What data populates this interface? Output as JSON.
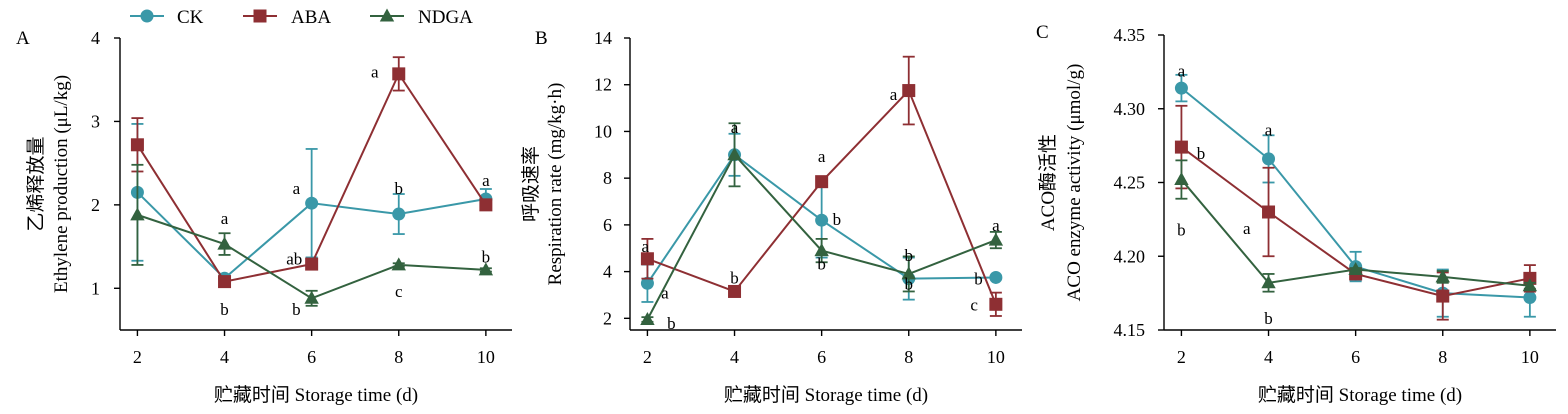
{
  "legend": [
    {
      "name": "CK",
      "color": "#3a98a8",
      "marker": "circle"
    },
    {
      "name": "ABA",
      "color": "#8e2f33",
      "marker": "square"
    },
    {
      "name": "NDGA",
      "color": "#33623f",
      "marker": "triangle"
    }
  ],
  "chart_data": [
    {
      "type": "line",
      "panel_label": "A",
      "xlabel": "贮藏时间 Storage time (d)",
      "ylabel_cn": "乙烯释放量",
      "ylabel_en": "Ethylene production (μL/kg)",
      "x": [
        2,
        4,
        6,
        8,
        10
      ],
      "xticks": [
        "2",
        "4",
        "6",
        "8",
        "10"
      ],
      "xlim": [
        1.6,
        10.6
      ],
      "ylim": [
        0.5,
        4
      ],
      "yticks": [
        1,
        2,
        3,
        4
      ],
      "ytick_labels": [
        "1",
        "2",
        "3",
        "4"
      ],
      "series": [
        {
          "name": "CK",
          "values": [
            2.15,
            1.12,
            2.02,
            1.89,
            2.07
          ],
          "errors": [
            0.82,
            0.04,
            0.65,
            0.24,
            0.12
          ]
        },
        {
          "name": "ABA",
          "values": [
            2.72,
            1.08,
            1.29,
            3.57,
            2.0
          ],
          "errors": [
            0.32,
            0.04,
            0.06,
            0.2,
            0.06
          ]
        },
        {
          "name": "NDGA",
          "values": [
            1.88,
            1.53,
            0.88,
            1.28,
            1.22
          ],
          "errors": [
            0.6,
            0.13,
            0.09,
            0.02,
            0.02
          ]
        }
      ],
      "annotations": [
        {
          "text": "a",
          "x": 4,
          "y": 1.84
        },
        {
          "text": "b",
          "x": 4,
          "y": 0.75
        },
        {
          "text": "a",
          "x": 5.65,
          "y": 2.2
        },
        {
          "text": "ab",
          "x": 5.6,
          "y": 1.36
        },
        {
          "text": "b",
          "x": 5.65,
          "y": 0.75
        },
        {
          "text": "a",
          "x": 7.45,
          "y": 3.6
        },
        {
          "text": "b",
          "x": 8,
          "y": 2.2
        },
        {
          "text": "c",
          "x": 8,
          "y": 0.97
        },
        {
          "text": "a",
          "x": 10,
          "y": 2.3
        },
        {
          "text": "b",
          "x": 10,
          "y": 1.38
        }
      ]
    },
    {
      "type": "line",
      "panel_label": "B",
      "xlabel": "贮藏时间 Storage time (d)",
      "ylabel_cn": "呼吸速率",
      "ylabel_en": "Respiration rate (mg/kg·h)",
      "x": [
        2,
        4,
        6,
        8,
        10
      ],
      "xticks": [
        "2",
        "4",
        "6",
        "8",
        "10"
      ],
      "xlim": [
        1.6,
        10.6
      ],
      "ylim": [
        1.5,
        14
      ],
      "yticks": [
        2,
        4,
        6,
        8,
        10,
        12,
        14
      ],
      "ytick_labels": [
        "2",
        "4",
        "6",
        "8",
        "10",
        "12",
        "14"
      ],
      "series": [
        {
          "name": "CK",
          "values": [
            3.5,
            9.0,
            6.2,
            3.7,
            3.75
          ],
          "errors": [
            0.8,
            0.9,
            1.6,
            0.9,
            0.05
          ]
        },
        {
          "name": "ABA",
          "values": [
            4.55,
            3.15,
            7.85,
            11.75,
            2.6
          ],
          "errors": [
            0.85,
            0.05,
            0.1,
            1.45,
            0.5
          ]
        },
        {
          "name": "NDGA",
          "values": [
            1.95,
            9.0,
            4.9,
            3.9,
            5.35
          ],
          "errors": [
            0.1,
            1.35,
            0.5,
            0.75,
            0.35
          ]
        }
      ],
      "annotations": [
        {
          "text": "a",
          "x": 1.95,
          "y": 5.1
        },
        {
          "text": "a",
          "x": 2.4,
          "y": 3.1
        },
        {
          "text": "b",
          "x": 2.55,
          "y": 1.8
        },
        {
          "text": "a",
          "x": 4,
          "y": 10.2
        },
        {
          "text": "b",
          "x": 4,
          "y": 3.75
        },
        {
          "text": "a",
          "x": 6,
          "y": 8.95
        },
        {
          "text": "b",
          "x": 6.35,
          "y": 6.25
        },
        {
          "text": "b",
          "x": 6,
          "y": 4.35
        },
        {
          "text": "a",
          "x": 7.65,
          "y": 11.6
        },
        {
          "text": "b",
          "x": 8,
          "y": 4.7
        },
        {
          "text": "b",
          "x": 8,
          "y": 3.5
        },
        {
          "text": "a",
          "x": 10,
          "y": 6.0
        },
        {
          "text": "b",
          "x": 9.6,
          "y": 3.7
        },
        {
          "text": "c",
          "x": 9.5,
          "y": 2.6
        }
      ]
    },
    {
      "type": "line",
      "panel_label": "C",
      "xlabel": "贮藏时间 Storage time (d)",
      "ylabel_cn": "ACO酶活性",
      "ylabel_en": "ACO enzyme activity (μmol/g)",
      "x": [
        2,
        4,
        6,
        8,
        10
      ],
      "xticks": [
        "2",
        "4",
        "6",
        "8",
        "10"
      ],
      "xlim": [
        1.6,
        10.6
      ],
      "ylim": [
        4.15,
        4.35
      ],
      "yticks": [
        4.15,
        4.2,
        4.25,
        4.3,
        4.35
      ],
      "ytick_labels": [
        "4.15",
        "4.20",
        "4.25",
        "4.30",
        "4.35"
      ],
      "series": [
        {
          "name": "CK",
          "values": [
            4.314,
            4.266,
            4.193,
            4.175,
            4.172
          ],
          "errors": [
            0.009,
            0.016,
            0.01,
            0.016,
            0.013
          ]
        },
        {
          "name": "ABA",
          "values": [
            4.274,
            4.23,
            4.188,
            4.173,
            4.185
          ],
          "errors": [
            0.028,
            0.03,
            0.003,
            0.016,
            0.009
          ]
        },
        {
          "name": "NDGA",
          "values": [
            4.252,
            4.182,
            4.191,
            4.186,
            4.18
          ],
          "errors": [
            0.013,
            0.006,
            0.001,
            0.004,
            0.002
          ]
        }
      ],
      "annotations": [
        {
          "text": "a",
          "x": 2,
          "y": 4.326
        },
        {
          "text": "b",
          "x": 2.45,
          "y": 4.27
        },
        {
          "text": "b",
          "x": 2,
          "y": 4.218
        },
        {
          "text": "a",
          "x": 4,
          "y": 4.286
        },
        {
          "text": "a",
          "x": 3.5,
          "y": 4.219
        },
        {
          "text": "b",
          "x": 4,
          "y": 4.158
        }
      ]
    }
  ]
}
